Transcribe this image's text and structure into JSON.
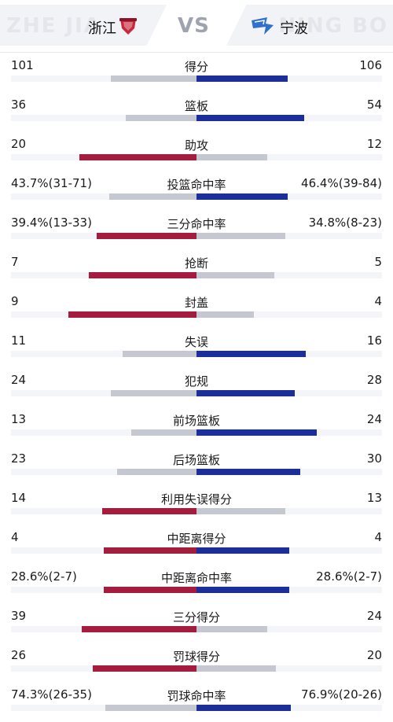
{
  "header": {
    "bg_left": "ZHE JIA",
    "bg_right": "NING BO",
    "team_left": "浙江",
    "team_right": "宁波",
    "vs": "VS"
  },
  "colors": {
    "left_win": "#a41d3f",
    "right_win": "#1b2e9a",
    "lose": "#c5c8d1"
  },
  "stats": [
    {
      "label": "得分",
      "left": "101",
      "right": "106",
      "left_frac": 0.46,
      "right_frac": 0.49,
      "winner": "right"
    },
    {
      "label": "篮板",
      "left": "36",
      "right": "54",
      "left_frac": 0.38,
      "right_frac": 0.58,
      "winner": "right"
    },
    {
      "label": "助攻",
      "left": "20",
      "right": "12",
      "left_frac": 0.63,
      "right_frac": 0.38,
      "winner": "left"
    },
    {
      "label": "投篮命中率",
      "left": "43.7%(31-71)",
      "right": "46.4%(39-84)",
      "left_frac": 0.47,
      "right_frac": 0.49,
      "winner": "right"
    },
    {
      "label": "三分命中率",
      "left": "39.4%(13-33)",
      "right": "34.8%(8-23)",
      "left_frac": 0.54,
      "right_frac": 0.48,
      "winner": "left"
    },
    {
      "label": "抢断",
      "left": "7",
      "right": "5",
      "left_frac": 0.58,
      "right_frac": 0.42,
      "winner": "left"
    },
    {
      "label": "封盖",
      "left": "9",
      "right": "4",
      "left_frac": 0.69,
      "right_frac": 0.31,
      "winner": "left"
    },
    {
      "label": "失误",
      "left": "11",
      "right": "16",
      "left_frac": 0.4,
      "right_frac": 0.59,
      "winner": "right"
    },
    {
      "label": "犯规",
      "left": "24",
      "right": "28",
      "left_frac": 0.46,
      "right_frac": 0.53,
      "winner": "right"
    },
    {
      "label": "前场篮板",
      "left": "13",
      "right": "24",
      "left_frac": 0.35,
      "right_frac": 0.65,
      "winner": "right"
    },
    {
      "label": "后场篮板",
      "left": "23",
      "right": "30",
      "left_frac": 0.43,
      "right_frac": 0.56,
      "winner": "right"
    },
    {
      "label": "利用失误得分",
      "left": "14",
      "right": "13",
      "left_frac": 0.51,
      "right_frac": 0.48,
      "winner": "left"
    },
    {
      "label": "中距离得分",
      "left": "4",
      "right": "4",
      "left_frac": 0.5,
      "right_frac": 0.5,
      "winner": "both"
    },
    {
      "label": "中距离命中率",
      "left": "28.6%(2-7)",
      "right": "28.6%(2-7)",
      "left_frac": 0.5,
      "right_frac": 0.5,
      "winner": "both"
    },
    {
      "label": "三分得分",
      "left": "39",
      "right": "24",
      "left_frac": 0.62,
      "right_frac": 0.38,
      "winner": "left"
    },
    {
      "label": "罚球得分",
      "left": "26",
      "right": "20",
      "left_frac": 0.56,
      "right_frac": 0.43,
      "winner": "left"
    },
    {
      "label": "罚球命中率",
      "left": "74.3%(26-35)",
      "right": "76.9%(20-26)",
      "left_frac": 0.49,
      "right_frac": 0.51,
      "winner": "right"
    }
  ]
}
